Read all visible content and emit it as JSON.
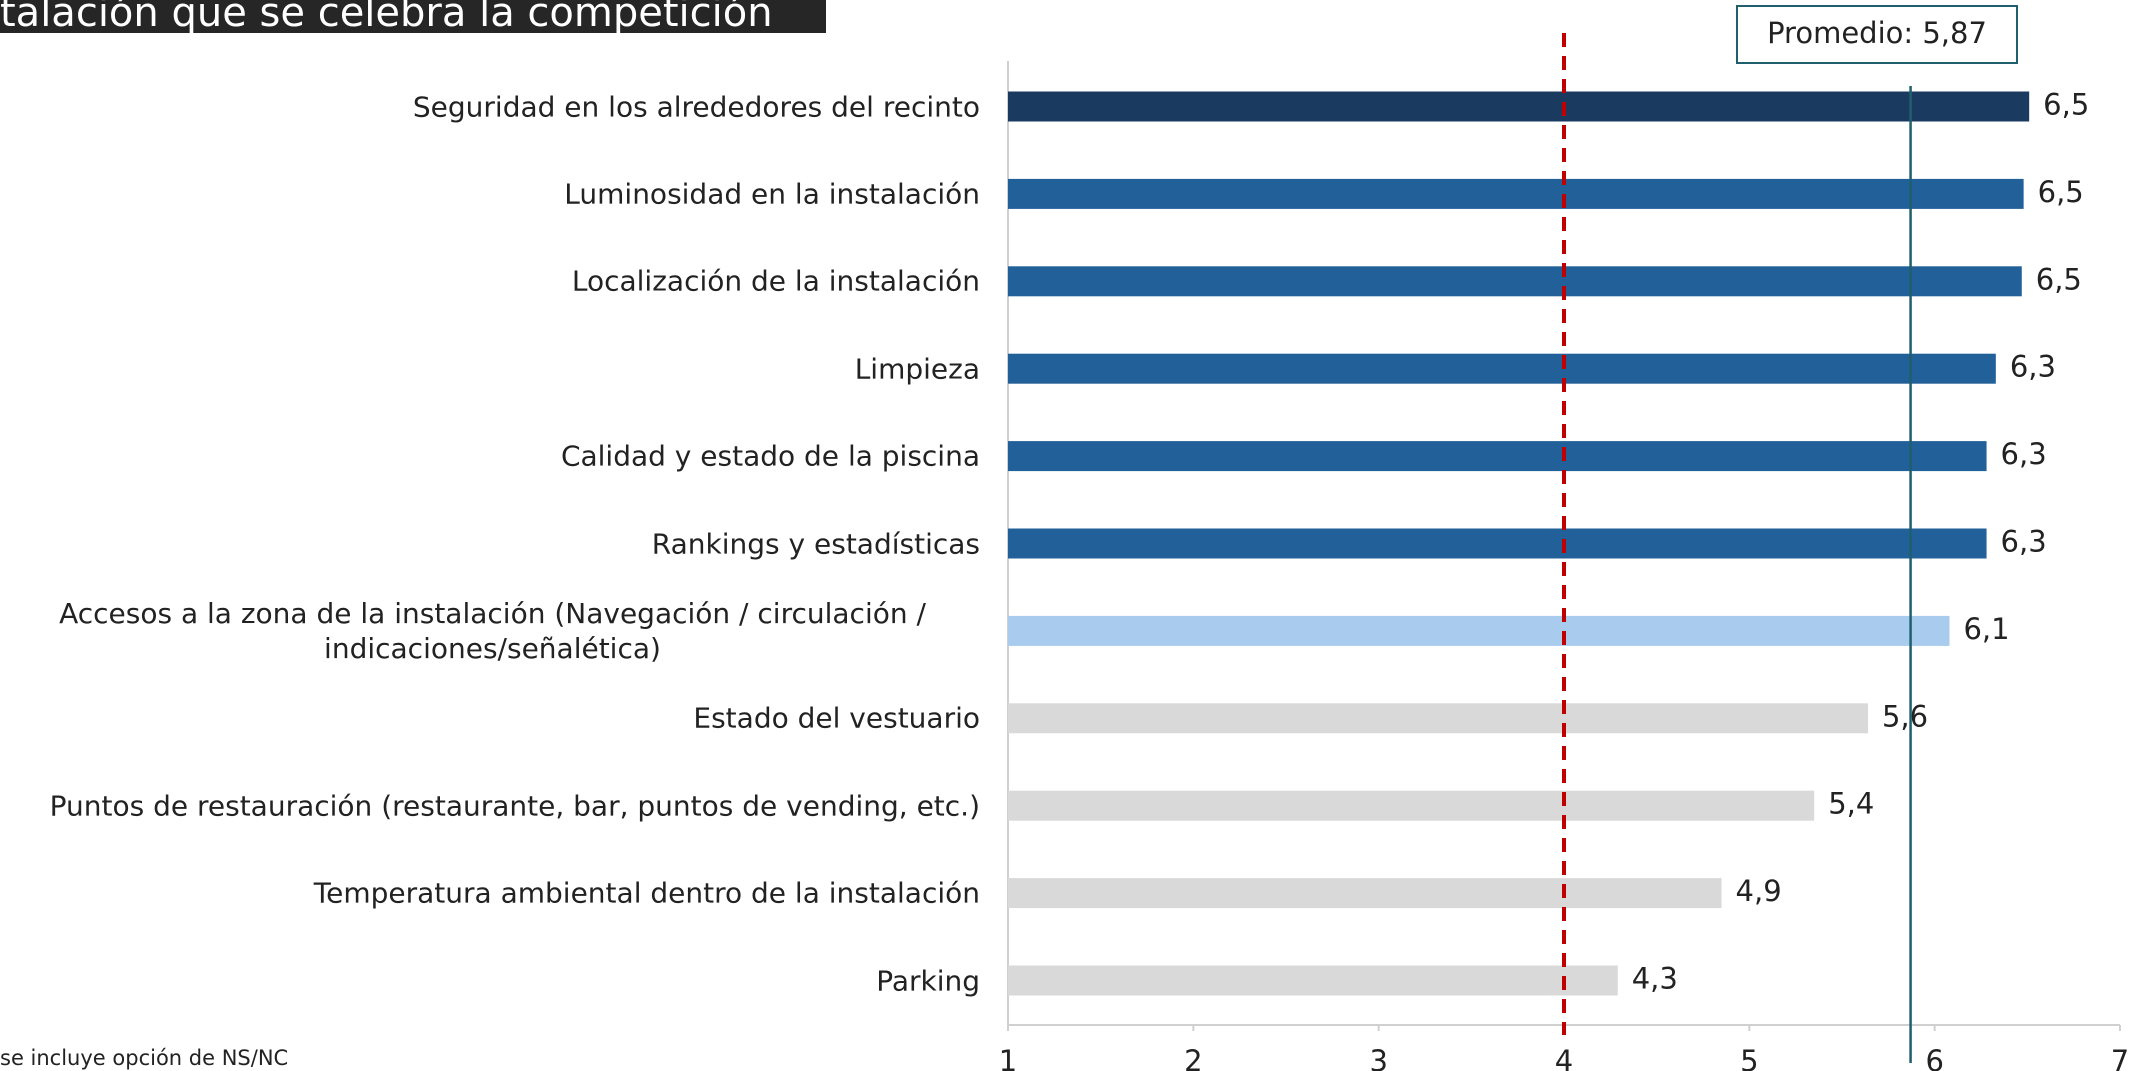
{
  "chart_data": {
    "type": "bar",
    "orientation": "horizontal",
    "title": "talación que se celebra la competición",
    "footnote": "se incluye opción de NS/NC",
    "categories": [
      "Seguridad en los alrededores del recinto",
      "Luminosidad en la instalación",
      "Localización de la instalación",
      "Limpieza",
      "Calidad y estado de la piscina",
      "Rankings y estadísticas",
      "Accesos a la zona de la instalación (Navegación / circulación / indicaciones/señalética)",
      "Estado del vestuario",
      "Puntos de restauración (restaurante, bar, puntos de vending, etc.)",
      "Temperatura ambiental dentro de la instalación",
      "Parking"
    ],
    "values": [
      6.51,
      6.48,
      6.47,
      6.33,
      6.28,
      6.28,
      6.08,
      5.64,
      5.35,
      4.85,
      4.29
    ],
    "value_labels": [
      "6,5",
      "6,5",
      "6,5",
      "6,3",
      "6,3",
      "6,3",
      "6,1",
      "5,6",
      "5,4",
      "4,9",
      "4,3"
    ],
    "colors": [
      "#1b3a60",
      "#22609a",
      "#22609a",
      "#22609a",
      "#22609a",
      "#22609a",
      "#a9cbee",
      "#d9d9d9",
      "#d9d9d9",
      "#d9d9d9",
      "#d9d9d9"
    ],
    "xlim": [
      1,
      7
    ],
    "xticks": [
      1,
      2,
      3,
      4,
      5,
      6,
      7
    ],
    "average_line": {
      "value": 5.87,
      "label": "Promedio: 5,87",
      "color": "#1f5f6e"
    },
    "reference_line": {
      "value": 4,
      "color": "#c00000"
    }
  }
}
